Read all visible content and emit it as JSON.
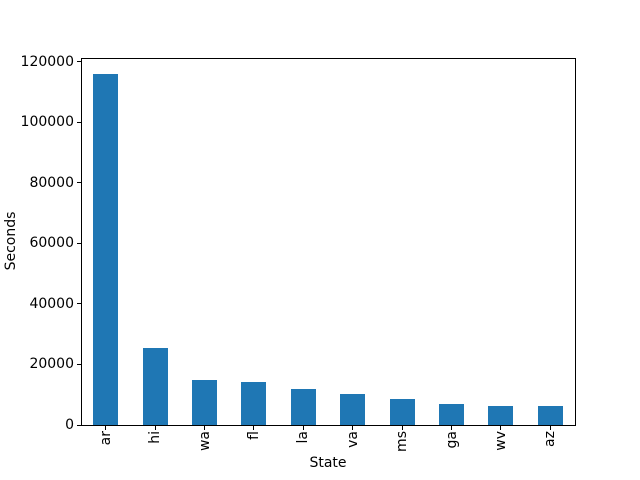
{
  "figure": {
    "background": "#ffffff",
    "bar_color": "#1f77b4",
    "axis_color": "#000000",
    "text_color": "#000000"
  },
  "chart_data": {
    "type": "bar",
    "title": "",
    "xlabel": "State",
    "ylabel": "Seconds",
    "categories": [
      "ar",
      "hi",
      "wa",
      "fl",
      "la",
      "va",
      "ms",
      "ga",
      "wv",
      "az"
    ],
    "values": [
      116000,
      25500,
      15000,
      14200,
      11900,
      10300,
      8600,
      7000,
      6300,
      6300
    ],
    "ylim": [
      0,
      121300
    ],
    "yticks": [
      0,
      20000,
      40000,
      60000,
      80000,
      100000,
      120000
    ],
    "ytick_labels": [
      "0",
      "20000",
      "40000",
      "60000",
      "80000",
      "100000",
      "120000"
    ],
    "xtick_rotation": 90,
    "grid": false,
    "legend": false
  }
}
